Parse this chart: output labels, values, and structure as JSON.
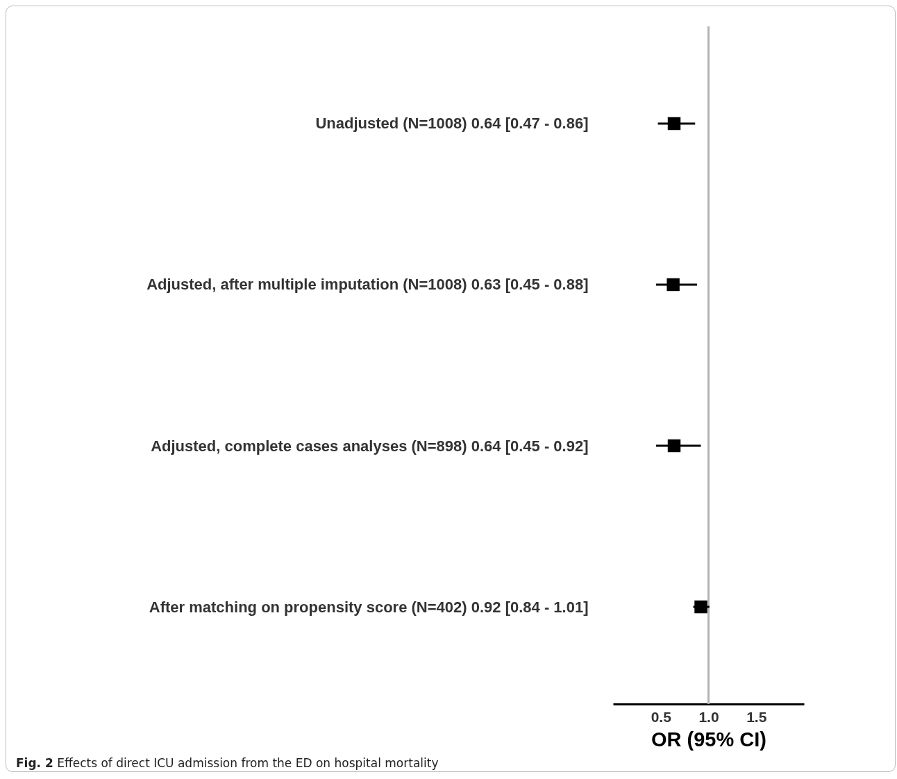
{
  "chart_data": {
    "type": "scatter",
    "orientation": "horizontal",
    "categories": [
      "Unadjusted (N=1008) 0.64 [0.47 - 0.86]",
      "Adjusted, after multiple imputation (N=1008) 0.63 [0.45 - 0.88]",
      "Adjusted, complete cases analyses (N=898) 0.64 [0.45 - 0.92]",
      "After matching on propensity score (N=402) 0.92 [0.84 - 1.01]"
    ],
    "series": [
      {
        "color": "#000000",
        "values": [
          0.64,
          0.63,
          0.64,
          0.92
        ],
        "errors": [
          [
            0.47,
            0.86
          ],
          [
            0.45,
            0.88
          ],
          [
            0.45,
            0.92
          ],
          [
            0.84,
            1.01
          ]
        ]
      }
    ],
    "marker": "square",
    "xlabel": "OR (95% CI)",
    "xlim": [
      0,
      2
    ],
    "xticks": [
      0.5,
      {
        "value": 1,
        "label": "1.0"
      },
      1.5
    ],
    "ref_lines": [
      {
        "axis": "x",
        "value": 1,
        "color": "#b3b3b3"
      }
    ],
    "grid": false,
    "annotations": [
      "Fig. 2 Effects of direct ICU admission from the ED on hospital mortality"
    ]
  }
}
